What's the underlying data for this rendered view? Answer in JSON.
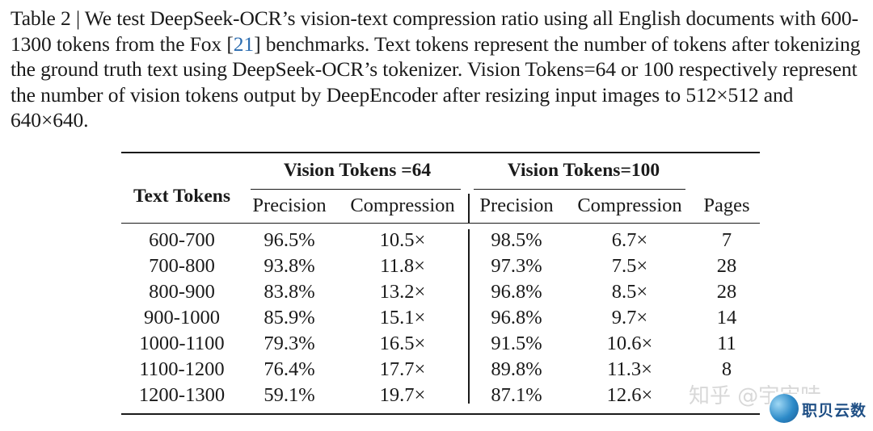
{
  "caption": {
    "label": "Table 2 | We test DeepSeek-OCR’s vision-text compression ratio using all English documents with 600-1300 tokens from the Fox [",
    "ref": "21",
    "rest": "] benchmarks. Text tokens represent the number of tokens after tokenizing the ground truth text using DeepSeek-OCR’s tokenizer. Vision Tokens=64 or 100 respectively represent the number of vision tokens output by DeepEncoder after resizing input images to 512×512 and 640×640."
  },
  "table": {
    "row_header": "Text Tokens",
    "group1": "Vision Tokens =64",
    "group2": "Vision Tokens=100",
    "sub_headers": [
      "Precision",
      "Compression",
      "Precision",
      "Compression",
      "Pages"
    ],
    "rows": [
      [
        "600-700",
        "96.5%",
        "10.5×",
        "98.5%",
        "6.7×",
        "7"
      ],
      [
        "700-800",
        "93.8%",
        "11.8×",
        "97.3%",
        "7.5×",
        "28"
      ],
      [
        "800-900",
        "83.8%",
        "13.2×",
        "96.8%",
        "8.5×",
        "28"
      ],
      [
        "900-1000",
        "85.9%",
        "15.1×",
        "96.8%",
        "9.7×",
        "14"
      ],
      [
        "1000-1100",
        "79.3%",
        "16.5×",
        "91.5%",
        "10.6×",
        "11"
      ],
      [
        "1100-1200",
        "76.4%",
        "17.7×",
        "89.8%",
        "11.3×",
        "8"
      ],
      [
        "1200-1300",
        "59.1%",
        "19.7×",
        "87.1%",
        "12.6×",
        ""
      ]
    ]
  },
  "watermark": {
    "text": "知乎 @宇宙哇",
    "logo_text": "职贝云数"
  }
}
